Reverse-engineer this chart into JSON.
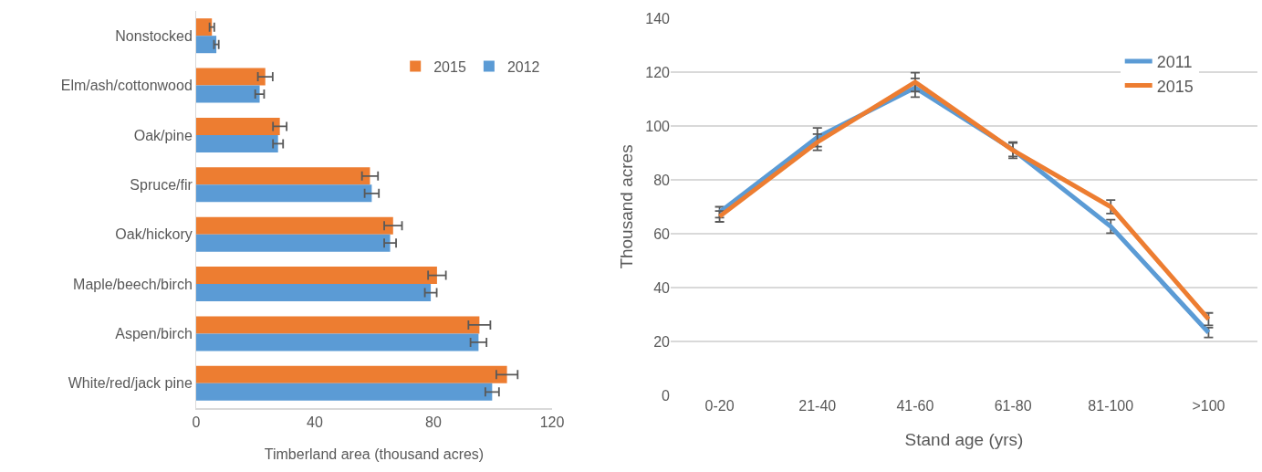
{
  "chart_data": [
    {
      "type": "bar",
      "orientation": "horizontal",
      "xlabel": "Timberland area (thousand acres)",
      "categories": [
        "Nonstocked",
        "Elm/ash/cottonwood",
        "Oak/pine",
        "Spruce/fir",
        "Oak/hickory",
        "Maple/beech/birch",
        "Aspen/birch",
        "White/red/jack pine"
      ],
      "series": [
        {
          "name": "2015",
          "color": "#ed7d31",
          "values": [
            5.3,
            23.3,
            28.2,
            58.6,
            66.4,
            81.2,
            95.5,
            104.8
          ],
          "errors": [
            0.8,
            2.5,
            2.3,
            2.7,
            3,
            3,
            3.7,
            3.6
          ]
        },
        {
          "name": "2012",
          "color": "#5b9bd5",
          "values": [
            6.8,
            21.4,
            27.6,
            59.2,
            65.4,
            79.1,
            95.2,
            99.8
          ],
          "errors": [
            0.8,
            1.5,
            1.7,
            2.4,
            2,
            2,
            2.7,
            2.3
          ]
        }
      ],
      "xlim": [
        0,
        120
      ],
      "xticks": [
        0,
        40,
        80,
        120
      ],
      "grid": false,
      "legend": "top right"
    },
    {
      "type": "line",
      "xlabel": "Stand age (yrs)",
      "ylabel": "Thousand acres",
      "categories": [
        "0-20",
        "21-40",
        "41-60",
        "61-80",
        "81-100",
        ">100"
      ],
      "series": [
        {
          "name": "2011",
          "color": "#5b9bd5",
          "values": [
            68,
            95.8,
            114.2,
            91.2,
            62.7,
            23.3
          ],
          "errors": [
            2,
            3.5,
            3.5,
            2.5,
            2.5,
            1.8
          ]
        },
        {
          "name": "2015",
          "color": "#ed7d31",
          "values": [
            66.4,
            94,
            116.3,
            91,
            70,
            28.3
          ],
          "errors": [
            2,
            3,
            3.5,
            3,
            2.5,
            2.3
          ]
        }
      ],
      "ylim": [
        0,
        140
      ],
      "yticks": [
        0,
        20,
        40,
        60,
        80,
        100,
        120,
        140
      ],
      "grid": "y",
      "legend": "top right",
      "line_style": "solid"
    }
  ]
}
